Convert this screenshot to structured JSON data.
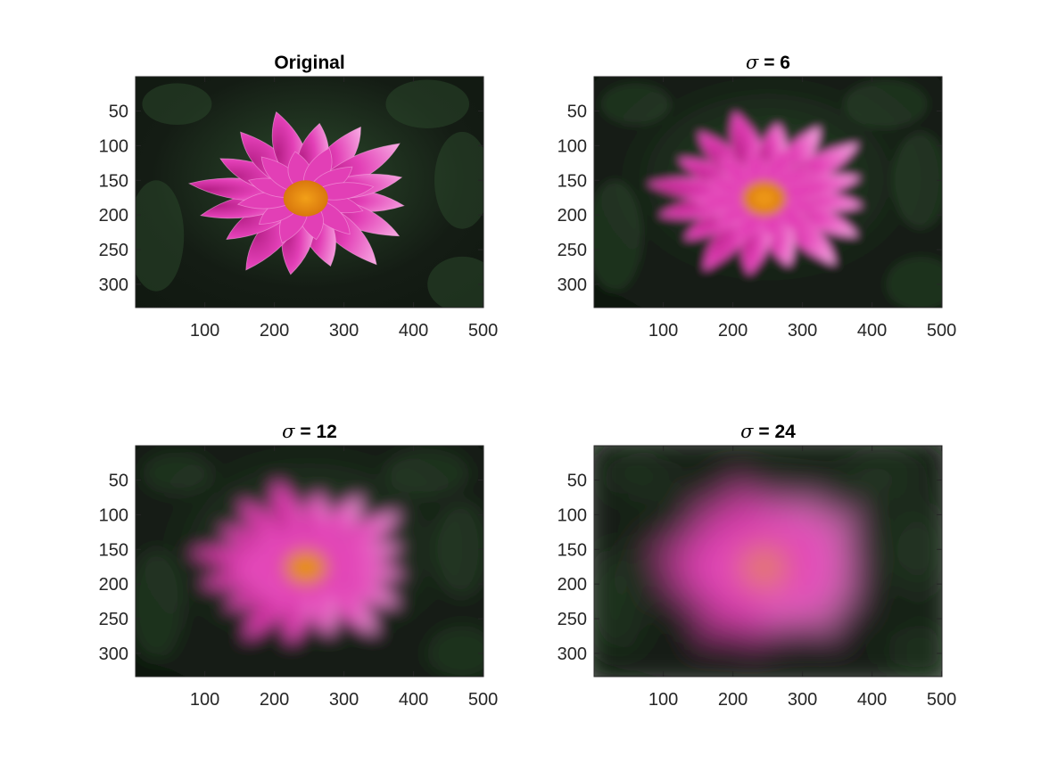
{
  "figure": {
    "layout": {
      "rows": 2,
      "cols": 2
    }
  },
  "chart_data": [
    {
      "type": "image",
      "title": "Original",
      "title_symbol": "",
      "title_value": "",
      "blur_sigma": 0,
      "xlim": [
        1,
        500
      ],
      "ylim": [
        1,
        333
      ],
      "y_reversed": true,
      "xticks": [
        100,
        200,
        300,
        400,
        500
      ],
      "xtick_labels": [
        "100",
        "200",
        "300",
        "400",
        "500"
      ],
      "yticks": [
        50,
        100,
        150,
        200,
        250,
        300
      ],
      "ytick_labels": [
        "50",
        "100",
        "150",
        "200",
        "250",
        "300"
      ],
      "grid": false
    },
    {
      "type": "image",
      "title": "",
      "title_symbol": "σ",
      "title_value": " = 6",
      "blur_sigma": 6,
      "xlim": [
        1,
        500
      ],
      "ylim": [
        1,
        333
      ],
      "y_reversed": true,
      "xticks": [
        100,
        200,
        300,
        400,
        500
      ],
      "xtick_labels": [
        "100",
        "200",
        "300",
        "400",
        "500"
      ],
      "yticks": [
        50,
        100,
        150,
        200,
        250,
        300
      ],
      "ytick_labels": [
        "50",
        "100",
        "150",
        "200",
        "250",
        "300"
      ],
      "grid": false
    },
    {
      "type": "image",
      "title": "",
      "title_symbol": "σ",
      "title_value": " = 12",
      "blur_sigma": 12,
      "xlim": [
        1,
        500
      ],
      "ylim": [
        1,
        333
      ],
      "y_reversed": true,
      "xticks": [
        100,
        200,
        300,
        400,
        500
      ],
      "xtick_labels": [
        "100",
        "200",
        "300",
        "400",
        "500"
      ],
      "yticks": [
        50,
        100,
        150,
        200,
        250,
        300
      ],
      "ytick_labels": [
        "50",
        "100",
        "150",
        "200",
        "250",
        "300"
      ],
      "grid": false
    },
    {
      "type": "image",
      "title": "",
      "title_symbol": "σ",
      "title_value": " = 24",
      "blur_sigma": 24,
      "xlim": [
        1,
        500
      ],
      "ylim": [
        1,
        333
      ],
      "y_reversed": true,
      "xticks": [
        100,
        200,
        300,
        400,
        500
      ],
      "xtick_labels": [
        "100",
        "200",
        "300",
        "400",
        "500"
      ],
      "yticks": [
        50,
        100,
        150,
        200,
        250,
        300
      ],
      "ytick_labels": [
        "50",
        "100",
        "150",
        "200",
        "250",
        "300"
      ],
      "grid": false
    }
  ],
  "colors": {
    "background": "#141c14",
    "foliage_dark": "#0f170f",
    "foliage_light": "#2c4a2c",
    "petal": "#e23fb6",
    "petal_light": "#f7a6e1",
    "petal_deep": "#b51f86",
    "center": "#f2a018",
    "center_dark": "#d9770d",
    "axis": "#262626"
  }
}
